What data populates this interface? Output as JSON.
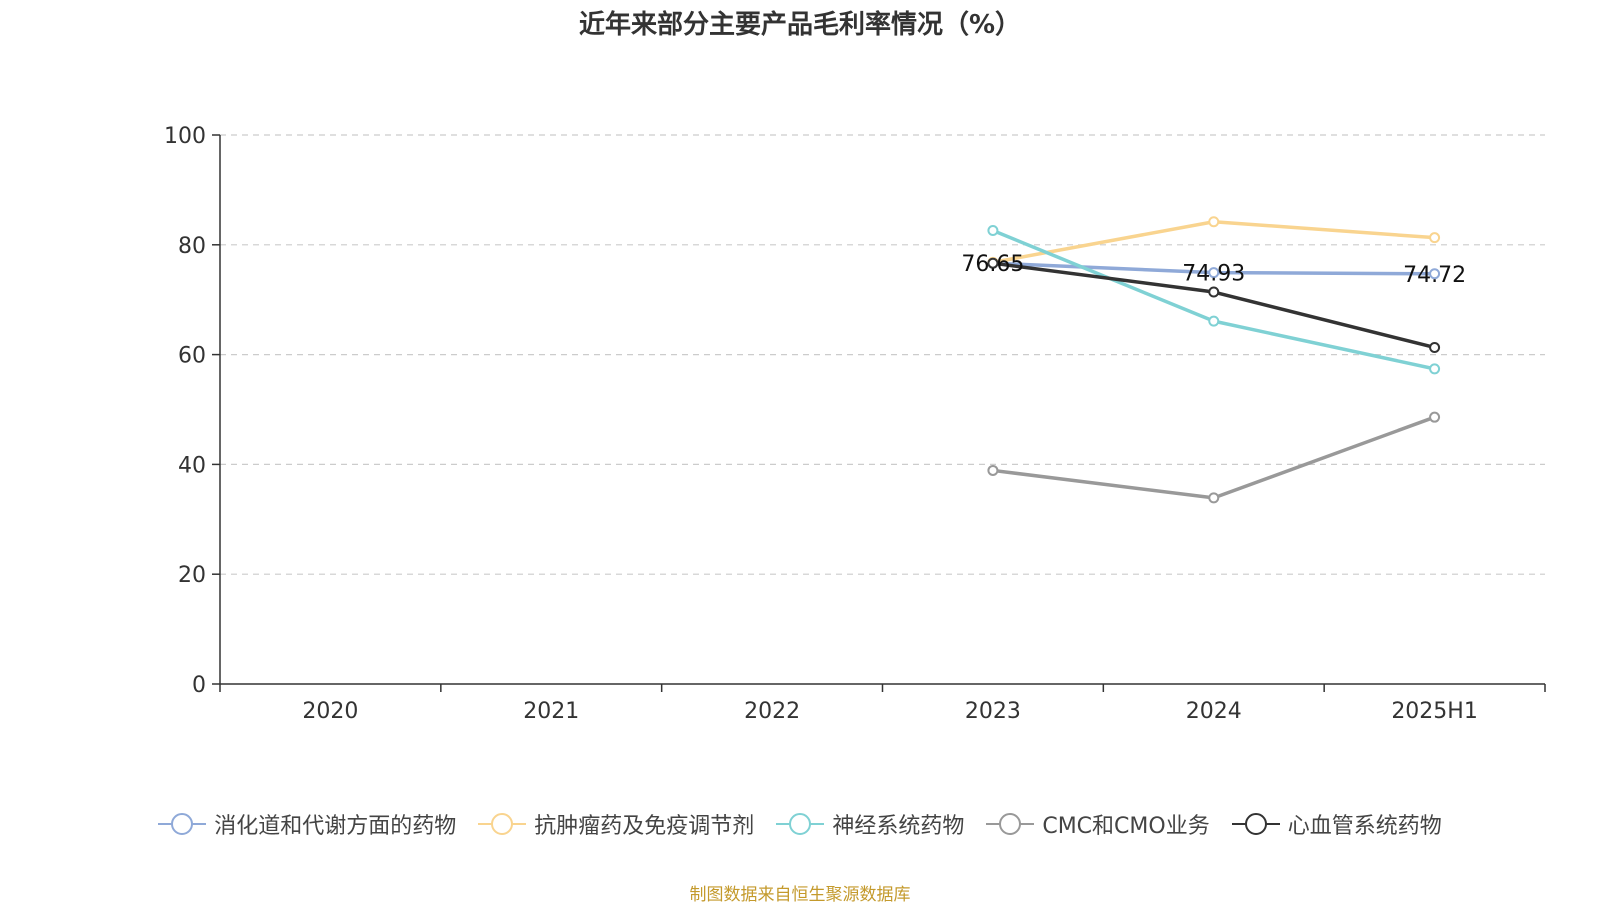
{
  "page": {
    "title": "近年来部分主要产品毛利率情况（%）",
    "source": "制图数据来自恒生聚源数据库"
  },
  "chart_data": {
    "type": "line",
    "title": "近年来部分主要产品毛利率情况（%）",
    "xlabel": "",
    "ylabel": "",
    "categories": [
      "2020",
      "2021",
      "2022",
      "2023",
      "2024",
      "2025H1"
    ],
    "ylim": [
      0,
      100
    ],
    "yticks": [
      0,
      20,
      40,
      60,
      80,
      100
    ],
    "grid": true,
    "legend_position": "bottom",
    "series": [
      {
        "name": "消化道和代谢方面的药物",
        "color": "#8fa9d8",
        "values": [
          null,
          null,
          null,
          76.65,
          74.93,
          74.72
        ],
        "labels": [
          null,
          null,
          null,
          "76.65",
          "74.93",
          "74.72"
        ]
      },
      {
        "name": "抗肿瘤药及免疫调节剂",
        "color": "#f9d48f",
        "values": [
          null,
          null,
          null,
          76.8,
          84.2,
          81.3
        ]
      },
      {
        "name": "神经系统药物",
        "color": "#7fd1d4",
        "values": [
          null,
          null,
          null,
          82.6,
          66.1,
          57.4
        ]
      },
      {
        "name": "CMC和CMO业务",
        "color": "#999999",
        "values": [
          null,
          null,
          null,
          38.9,
          33.9,
          48.6
        ]
      },
      {
        "name": "心血管系统药物",
        "color": "#333333",
        "values": [
          null,
          null,
          null,
          76.65,
          71.4,
          61.3
        ]
      }
    ]
  }
}
